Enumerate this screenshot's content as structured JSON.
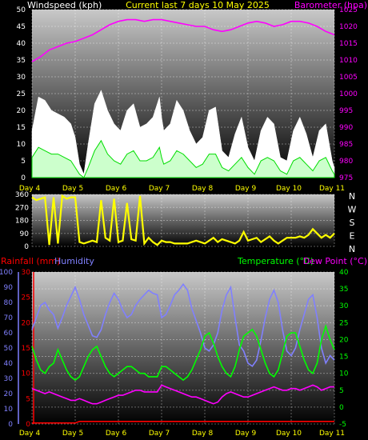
{
  "colors": {
    "wind_axis": "#ffffff",
    "baro": "#ff00ff",
    "title": "#ffff00",
    "gust": "#ffffff",
    "avg": "#00dd00",
    "winddir": "#ffff00",
    "rain": "#ff0000",
    "humidity": "#8080ff",
    "temperature": "#00ff00",
    "dewpoint": "#ff00ff",
    "day_label": "#ffff00"
  },
  "chart_data": [
    {
      "type": "area",
      "title": "Current last 7 days 10 May 2025",
      "left_label": "Windspeed (kph)",
      "right_label": "Barometer (hpa)",
      "days": [
        "Day 4",
        "Day 5",
        "Day 6",
        "Day 7",
        "Day 8",
        "Day 9",
        "Day 10",
        "Day 11"
      ],
      "x_range": [
        0,
        7
      ],
      "ylim_left": [
        0,
        50
      ],
      "ylim_right": [
        975,
        1025
      ],
      "left_ticks": [
        "0",
        "5",
        "10",
        "15",
        "20",
        "25",
        "30",
        "35",
        "40",
        "45",
        "50"
      ],
      "right_ticks": [
        "975",
        "980",
        "985",
        "990",
        "995",
        "1000",
        "1005",
        "1010",
        "1015",
        "1020",
        "1025"
      ],
      "series": [
        {
          "key": "gust",
          "kind": "area",
          "axis": "left",
          "x": [
            0.0,
            0.15,
            0.3,
            0.45,
            0.6,
            0.75,
            0.9,
            1.0,
            1.1,
            1.2,
            1.3,
            1.45,
            1.6,
            1.75,
            1.9,
            2.05,
            2.2,
            2.35,
            2.5,
            2.65,
            2.8,
            2.95,
            3.0,
            3.05,
            3.2,
            3.35,
            3.5,
            3.65,
            3.8,
            3.95,
            4.1,
            4.25,
            4.4,
            4.55,
            4.7,
            4.85,
            5.0,
            5.15,
            5.3,
            5.45,
            5.6,
            5.75,
            5.9,
            6.05,
            6.2,
            6.35,
            6.5,
            6.65,
            6.8,
            6.95,
            7.0
          ],
          "y": [
            14,
            24,
            23,
            20,
            19,
            18,
            16,
            12,
            4,
            1,
            10,
            22,
            26,
            20,
            16,
            14,
            20,
            22,
            15,
            16,
            18,
            24,
            18,
            14,
            16,
            23,
            20,
            14,
            10,
            12,
            20,
            21,
            8,
            6,
            13,
            18,
            9,
            5,
            14,
            18,
            16,
            6,
            5,
            14,
            18,
            13,
            6,
            14,
            16,
            5,
            3
          ]
        },
        {
          "key": "average",
          "kind": "area",
          "axis": "left",
          "x": [
            0.0,
            0.15,
            0.3,
            0.45,
            0.6,
            0.75,
            0.9,
            1.0,
            1.1,
            1.2,
            1.3,
            1.45,
            1.6,
            1.75,
            1.9,
            2.05,
            2.2,
            2.35,
            2.5,
            2.65,
            2.8,
            2.95,
            3.0,
            3.05,
            3.2,
            3.35,
            3.5,
            3.65,
            3.8,
            3.95,
            4.1,
            4.25,
            4.4,
            4.55,
            4.7,
            4.85,
            5.0,
            5.15,
            5.3,
            5.45,
            5.6,
            5.75,
            5.9,
            6.05,
            6.2,
            6.35,
            6.5,
            6.65,
            6.8,
            6.95,
            7.0
          ],
          "y": [
            6,
            9,
            8,
            7,
            7,
            6,
            5,
            3,
            1,
            0,
            3,
            8,
            11,
            7,
            5,
            4,
            7,
            8,
            5,
            5,
            6,
            9,
            6,
            4,
            5,
            8,
            7,
            5,
            3,
            4,
            7,
            7,
            3,
            2,
            4,
            6,
            3,
            1,
            5,
            6,
            5,
            2,
            1,
            5,
            6,
            4,
            2,
            5,
            6,
            2,
            1
          ]
        },
        {
          "key": "barometer",
          "kind": "line",
          "axis": "right",
          "x": [
            0.0,
            0.2,
            0.4,
            0.6,
            0.8,
            1.0,
            1.2,
            1.4,
            1.6,
            1.8,
            2.0,
            2.2,
            2.4,
            2.6,
            2.8,
            3.0,
            3.2,
            3.4,
            3.6,
            3.8,
            4.0,
            4.2,
            4.4,
            4.6,
            4.8,
            5.0,
            5.2,
            5.4,
            5.6,
            5.8,
            6.0,
            6.2,
            6.4,
            6.6,
            6.8,
            7.0
          ],
          "y": [
            1009.5,
            1011,
            1013,
            1014,
            1015,
            1015.5,
            1016.5,
            1017.5,
            1019,
            1020.5,
            1021.5,
            1022,
            1022,
            1021.5,
            1022,
            1022,
            1021.5,
            1021,
            1020.5,
            1020,
            1020,
            1019,
            1018.5,
            1019,
            1020,
            1021,
            1021.5,
            1021,
            1020,
            1020.5,
            1021.5,
            1021.5,
            1021,
            1020,
            1018.5,
            1017.5
          ]
        }
      ]
    },
    {
      "type": "scatter",
      "title": "",
      "ylim": [
        0,
        360
      ],
      "y_ticks": [
        "0",
        "90",
        "180",
        "270",
        "360"
      ],
      "directions": [
        "N",
        "W",
        "S",
        "E",
        "N"
      ],
      "days": [
        "Day 4",
        "Day 5",
        "Day 6",
        "Day 7",
        "Day 8",
        "Day 9",
        "Day 10",
        "Day 11"
      ],
      "series": [
        {
          "key": "wind_direction",
          "kind": "line",
          "x": [
            0.0,
            0.1,
            0.2,
            0.3,
            0.4,
            0.5,
            0.6,
            0.7,
            0.8,
            0.9,
            1.0,
            1.1,
            1.2,
            1.3,
            1.4,
            1.5,
            1.6,
            1.7,
            1.8,
            1.9,
            2.0,
            2.1,
            2.2,
            2.3,
            2.4,
            2.5,
            2.6,
            2.7,
            2.8,
            2.9,
            3.0,
            3.1,
            3.2,
            3.3,
            3.4,
            3.5,
            3.6,
            3.7,
            3.8,
            3.9,
            4.0,
            4.1,
            4.2,
            4.3,
            4.4,
            4.5,
            4.6,
            4.7,
            4.8,
            4.9,
            5.0,
            5.1,
            5.2,
            5.3,
            5.4,
            5.5,
            5.6,
            5.7,
            5.8,
            5.9,
            6.0,
            6.1,
            6.2,
            6.3,
            6.4,
            6.5,
            6.6,
            6.7,
            6.8,
            6.9,
            7.0
          ],
          "y": [
            340,
            320,
            330,
            340,
            10,
            340,
            20,
            350,
            330,
            340,
            340,
            30,
            20,
            30,
            40,
            30,
            320,
            60,
            40,
            330,
            30,
            40,
            300,
            50,
            40,
            350,
            20,
            60,
            30,
            10,
            40,
            30,
            30,
            20,
            20,
            20,
            20,
            30,
            40,
            30,
            20,
            40,
            60,
            30,
            50,
            40,
            30,
            20,
            40,
            100,
            40,
            50,
            60,
            30,
            50,
            70,
            40,
            20,
            40,
            60,
            60,
            60,
            70,
            60,
            80,
            120,
            90,
            60,
            80,
            60,
            90
          ]
        }
      ]
    },
    {
      "type": "line",
      "title": "",
      "left_label_1": "Rainfall (mm)",
      "left_label_2": "Humidity",
      "right_label_1": "Temperature (°C)",
      "right_label_2": "Dew Point (°C)",
      "days": [
        "Day 4",
        "Day 5",
        "Day 6",
        "Day 7",
        "Day 8",
        "Day 9",
        "Day 10",
        "Day 11"
      ],
      "ylim_humidity": [
        0,
        100
      ],
      "ylim_rain": [
        0,
        30
      ],
      "ylim_temp": [
        -5,
        40
      ],
      "humidity_ticks": [
        "0",
        "10",
        "20",
        "30",
        "40",
        "50",
        "60",
        "70",
        "80",
        "90",
        "100"
      ],
      "rain_ticks": [
        "0",
        "5",
        "10",
        "15",
        "20",
        "25",
        "30"
      ],
      "temp_ticks": [
        "-5",
        "0",
        "5",
        "10",
        "15",
        "20",
        "25",
        "30",
        "35",
        "40"
      ],
      "series": [
        {
          "key": "humidity",
          "kind": "line",
          "axis": "humidity",
          "x": [
            0.0,
            0.1,
            0.2,
            0.3,
            0.4,
            0.5,
            0.6,
            0.7,
            0.8,
            0.9,
            1.0,
            1.1,
            1.2,
            1.3,
            1.4,
            1.5,
            1.6,
            1.7,
            1.8,
            1.9,
            2.0,
            2.1,
            2.2,
            2.3,
            2.4,
            2.5,
            2.6,
            2.7,
            2.8,
            2.9,
            3.0,
            3.1,
            3.2,
            3.3,
            3.4,
            3.5,
            3.6,
            3.7,
            3.8,
            3.9,
            4.0,
            4.1,
            4.2,
            4.3,
            4.4,
            4.5,
            4.6,
            4.7,
            4.8,
            4.9,
            5.0,
            5.1,
            5.2,
            5.3,
            5.4,
            5.5,
            5.6,
            5.7,
            5.8,
            5.9,
            6.0,
            6.1,
            6.2,
            6.3,
            6.4,
            6.5,
            6.6,
            6.7,
            6.8,
            6.9,
            7.0
          ],
          "y": [
            62,
            70,
            78,
            80,
            75,
            72,
            63,
            70,
            78,
            84,
            90,
            82,
            72,
            65,
            58,
            57,
            62,
            72,
            80,
            86,
            82,
            75,
            70,
            72,
            78,
            82,
            85,
            88,
            86,
            85,
            70,
            72,
            78,
            85,
            88,
            92,
            88,
            76,
            68,
            60,
            50,
            48,
            52,
            60,
            75,
            85,
            90,
            70,
            52,
            48,
            40,
            38,
            42,
            55,
            70,
            82,
            88,
            80,
            62,
            48,
            45,
            50,
            62,
            72,
            82,
            85,
            70,
            50,
            40,
            45,
            42
          ]
        },
        {
          "key": "temperature",
          "kind": "line",
          "axis": "temp",
          "x": [
            0.0,
            0.1,
            0.2,
            0.3,
            0.4,
            0.5,
            0.6,
            0.7,
            0.8,
            0.9,
            1.0,
            1.1,
            1.2,
            1.3,
            1.4,
            1.5,
            1.6,
            1.7,
            1.8,
            1.9,
            2.0,
            2.1,
            2.2,
            2.3,
            2.4,
            2.5,
            2.6,
            2.7,
            2.8,
            2.9,
            3.0,
            3.1,
            3.2,
            3.3,
            3.4,
            3.5,
            3.6,
            3.7,
            3.8,
            3.9,
            4.0,
            4.1,
            4.2,
            4.3,
            4.4,
            4.5,
            4.6,
            4.7,
            4.8,
            4.9,
            5.0,
            5.1,
            5.2,
            5.3,
            5.4,
            5.5,
            5.6,
            5.7,
            5.8,
            5.9,
            6.0,
            6.1,
            6.2,
            6.3,
            6.4,
            6.5,
            6.6,
            6.7,
            6.8,
            6.9,
            7.0
          ],
          "y": [
            18,
            14,
            11,
            10,
            12,
            13,
            17,
            14,
            11,
            9,
            8,
            9,
            12,
            15,
            17,
            18,
            15,
            12,
            10,
            9,
            10,
            11,
            12,
            12,
            11,
            10,
            10,
            9,
            9,
            9,
            12,
            12,
            11,
            10,
            9,
            8,
            9,
            11,
            14,
            17,
            21,
            22,
            19,
            15,
            12,
            10,
            9,
            12,
            17,
            21,
            22,
            23,
            21,
            17,
            13,
            10,
            9,
            11,
            16,
            21,
            22,
            22,
            18,
            14,
            11,
            10,
            13,
            20,
            24,
            20,
            17
          ]
        },
        {
          "key": "dew_point",
          "kind": "line",
          "axis": "temp",
          "x": [
            0.0,
            0.1,
            0.2,
            0.3,
            0.4,
            0.5,
            0.6,
            0.7,
            0.8,
            0.9,
            1.0,
            1.1,
            1.2,
            1.3,
            1.4,
            1.5,
            1.6,
            1.7,
            1.8,
            1.9,
            2.0,
            2.1,
            2.2,
            2.3,
            2.4,
            2.5,
            2.6,
            2.7,
            2.8,
            2.9,
            3.0,
            3.1,
            3.2,
            3.3,
            3.4,
            3.5,
            3.6,
            3.7,
            3.8,
            3.9,
            4.0,
            4.1,
            4.2,
            4.3,
            4.4,
            4.5,
            4.6,
            4.7,
            4.8,
            4.9,
            5.0,
            5.1,
            5.2,
            5.3,
            5.4,
            5.5,
            5.6,
            5.7,
            5.8,
            5.9,
            6.0,
            6.1,
            6.2,
            6.3,
            6.4,
            6.5,
            6.6,
            6.7,
            6.8,
            6.9,
            7.0
          ],
          "y": [
            5.5,
            5,
            4.5,
            4,
            4.5,
            4,
            3.5,
            3,
            2.5,
            2,
            2,
            2.5,
            2,
            1.5,
            1,
            1,
            1.5,
            2,
            2.5,
            3,
            3.5,
            3.5,
            4,
            4.5,
            5,
            5,
            4.5,
            4.5,
            4.5,
            4.5,
            6.5,
            6,
            5.5,
            5,
            4.5,
            4,
            3.5,
            3,
            3,
            2.5,
            2,
            1.5,
            1,
            1.5,
            3,
            4,
            4.5,
            4,
            3.5,
            3,
            3,
            3.5,
            4,
            4.5,
            5,
            5.5,
            6,
            5.5,
            5,
            5,
            5.5,
            5.5,
            5,
            5.5,
            6,
            6.5,
            6,
            5,
            5.5,
            6,
            6
          ]
        },
        {
          "key": "rainfall",
          "kind": "line",
          "axis": "rain",
          "x": [
            0.0,
            1.0,
            1.1,
            2.0,
            3.0,
            4.0,
            5.0,
            6.0,
            7.0
          ],
          "y": [
            0.2,
            0.2,
            0.5,
            0.5,
            0.5,
            0.5,
            0.5,
            0.5,
            0.5
          ]
        }
      ]
    }
  ]
}
